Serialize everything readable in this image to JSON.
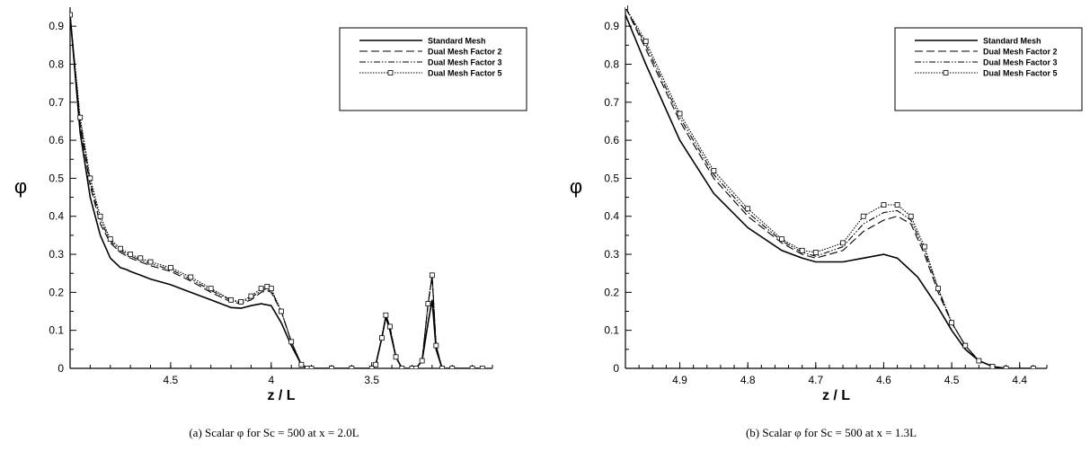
{
  "chart_data": [
    {
      "type": "line",
      "xlabel": "z / L",
      "ylabel": "φ",
      "caption": "(a) Scalar φ for Sc = 500 at x = 2.0L",
      "xlim": [
        5.0,
        2.9
      ],
      "ylim": [
        0,
        0.95
      ],
      "x_reversed": true,
      "xticks": [
        "4.5",
        "4",
        "3.5"
      ],
      "yticks": [
        "0",
        "0.1",
        "0.2",
        "0.3",
        "0.4",
        "0.5",
        "0.6",
        "0.7",
        "0.8",
        "0.9"
      ],
      "grid": false,
      "legend_position": "top-right",
      "series": [
        {
          "name": "Standard Mesh",
          "style": "solid",
          "marker": "none",
          "x": [
            5.0,
            4.95,
            4.9,
            4.85,
            4.8,
            4.75,
            4.72,
            4.7,
            4.65,
            4.6,
            4.5,
            4.4,
            4.3,
            4.2,
            4.15,
            4.1,
            4.05,
            4.0,
            3.95,
            3.9,
            3.85,
            3.82,
            3.8,
            3.7,
            3.6,
            3.5,
            3.48,
            3.45,
            3.43,
            3.41,
            3.38,
            3.35,
            3.3,
            3.28,
            3.25,
            3.22,
            3.2,
            3.18,
            3.15,
            3.1,
            3.0,
            2.95
          ],
          "y": [
            0.93,
            0.62,
            0.45,
            0.35,
            0.29,
            0.265,
            0.26,
            0.255,
            0.245,
            0.235,
            0.22,
            0.2,
            0.18,
            0.16,
            0.158,
            0.165,
            0.17,
            0.165,
            0.12,
            0.06,
            0.01,
            0.0,
            0.0,
            0.0,
            0.0,
            0.0,
            0.01,
            0.08,
            0.135,
            0.1,
            0.03,
            0.0,
            0.0,
            0.0,
            0.02,
            0.12,
            0.18,
            0.05,
            0.0,
            0.0,
            0.0,
            0.0
          ]
        },
        {
          "name": "Dual Mesh Factor 2",
          "style": "dash",
          "marker": "none",
          "x": [
            5.0,
            4.95,
            4.9,
            4.85,
            4.8,
            4.75,
            4.7,
            4.65,
            4.6,
            4.5,
            4.4,
            4.3,
            4.2,
            4.15,
            4.1,
            4.05,
            4.02,
            4.0,
            3.95,
            3.9,
            3.85,
            3.82,
            3.8,
            3.7,
            3.6,
            3.5,
            3.48,
            3.45,
            3.43,
            3.41,
            3.38,
            3.35,
            3.3,
            3.28,
            3.25,
            3.22,
            3.2,
            3.18,
            3.15,
            3.1,
            3.0,
            2.95
          ],
          "y": [
            0.93,
            0.64,
            0.48,
            0.38,
            0.33,
            0.305,
            0.29,
            0.28,
            0.27,
            0.255,
            0.23,
            0.2,
            0.175,
            0.17,
            0.18,
            0.2,
            0.205,
            0.2,
            0.15,
            0.07,
            0.01,
            0.0,
            0.0,
            0.0,
            0.0,
            0.0,
            0.01,
            0.08,
            0.14,
            0.11,
            0.03,
            0.0,
            0.0,
            0.0,
            0.02,
            0.17,
            0.24,
            0.06,
            0.0,
            0.0,
            0.0,
            0.0
          ]
        },
        {
          "name": "Dual Mesh Factor 3",
          "style": "dashdot",
          "marker": "none",
          "x": [
            5.0,
            4.95,
            4.9,
            4.85,
            4.8,
            4.75,
            4.7,
            4.65,
            4.6,
            4.5,
            4.4,
            4.3,
            4.2,
            4.15,
            4.1,
            4.05,
            4.02,
            4.0,
            3.95,
            3.9,
            3.85,
            3.82,
            3.8,
            3.7,
            3.6,
            3.5,
            3.48,
            3.45,
            3.43,
            3.41,
            3.38,
            3.35,
            3.3,
            3.28,
            3.25,
            3.22,
            3.2,
            3.18,
            3.15,
            3.1,
            3.0,
            2.95
          ],
          "y": [
            0.93,
            0.65,
            0.49,
            0.39,
            0.335,
            0.31,
            0.295,
            0.285,
            0.275,
            0.26,
            0.235,
            0.205,
            0.18,
            0.172,
            0.185,
            0.205,
            0.21,
            0.205,
            0.15,
            0.07,
            0.01,
            0.0,
            0.0,
            0.0,
            0.0,
            0.0,
            0.01,
            0.08,
            0.14,
            0.11,
            0.03,
            0.0,
            0.0,
            0.0,
            0.02,
            0.17,
            0.245,
            0.06,
            0.0,
            0.0,
            0.0,
            0.0
          ]
        },
        {
          "name": "Dual Mesh Factor 5",
          "style": "dotted",
          "marker": "square",
          "x": [
            5.0,
            4.95,
            4.9,
            4.85,
            4.8,
            4.75,
            4.7,
            4.65,
            4.6,
            4.5,
            4.4,
            4.3,
            4.2,
            4.15,
            4.1,
            4.05,
            4.02,
            4.0,
            3.95,
            3.9,
            3.85,
            3.82,
            3.8,
            3.7,
            3.6,
            3.5,
            3.48,
            3.45,
            3.43,
            3.41,
            3.38,
            3.35,
            3.3,
            3.28,
            3.25,
            3.22,
            3.2,
            3.18,
            3.15,
            3.1,
            3.0,
            2.95
          ],
          "y": [
            0.93,
            0.66,
            0.5,
            0.4,
            0.34,
            0.315,
            0.3,
            0.29,
            0.28,
            0.265,
            0.24,
            0.21,
            0.18,
            0.175,
            0.19,
            0.21,
            0.215,
            0.21,
            0.15,
            0.07,
            0.01,
            0.0,
            0.0,
            0.0,
            0.0,
            0.0,
            0.01,
            0.08,
            0.14,
            0.11,
            0.03,
            0.0,
            0.0,
            0.0,
            0.02,
            0.17,
            0.245,
            0.06,
            0.0,
            0.0,
            0.0,
            0.0
          ]
        }
      ]
    },
    {
      "type": "line",
      "xlabel": "z / L",
      "ylabel": "φ",
      "caption": "(b) Scalar φ for Sc = 500 at x = 1.3L",
      "xlim": [
        4.98,
        4.36
      ],
      "ylim": [
        0,
        0.95
      ],
      "x_reversed": true,
      "xticks": [
        "4.9",
        "4.8",
        "4.7",
        "4.6",
        "4.5",
        "4.4"
      ],
      "yticks": [
        "0",
        "0.1",
        "0.2",
        "0.3",
        "0.4",
        "0.5",
        "0.6",
        "0.7",
        "0.8",
        "0.9"
      ],
      "grid": false,
      "legend_position": "top-right",
      "series": [
        {
          "name": "Standard Mesh",
          "style": "solid",
          "marker": "none",
          "x": [
            4.98,
            4.95,
            4.9,
            4.85,
            4.8,
            4.75,
            4.72,
            4.7,
            4.66,
            4.63,
            4.6,
            4.58,
            4.55,
            4.52,
            4.5,
            4.48,
            4.46,
            4.44,
            4.42,
            4.38
          ],
          "y": [
            0.93,
            0.8,
            0.6,
            0.46,
            0.37,
            0.31,
            0.29,
            0.28,
            0.28,
            0.29,
            0.3,
            0.29,
            0.24,
            0.16,
            0.1,
            0.05,
            0.02,
            0.005,
            0.0,
            0.0
          ]
        },
        {
          "name": "Dual Mesh Factor 2",
          "style": "dash",
          "marker": "none",
          "x": [
            4.98,
            4.95,
            4.9,
            4.85,
            4.8,
            4.75,
            4.72,
            4.7,
            4.66,
            4.63,
            4.6,
            4.58,
            4.56,
            4.54,
            4.52,
            4.5,
            4.48,
            4.46,
            4.44,
            4.42,
            4.38
          ],
          "y": [
            0.95,
            0.84,
            0.65,
            0.5,
            0.4,
            0.33,
            0.3,
            0.29,
            0.31,
            0.36,
            0.39,
            0.4,
            0.38,
            0.3,
            0.2,
            0.12,
            0.06,
            0.02,
            0.005,
            0.0,
            0.0
          ]
        },
        {
          "name": "Dual Mesh Factor 3",
          "style": "dashdot",
          "marker": "none",
          "x": [
            4.98,
            4.95,
            4.9,
            4.85,
            4.8,
            4.75,
            4.72,
            4.7,
            4.66,
            4.63,
            4.6,
            4.58,
            4.56,
            4.54,
            4.52,
            4.5,
            4.48,
            4.46,
            4.44,
            4.42,
            4.38
          ],
          "y": [
            0.95,
            0.85,
            0.66,
            0.51,
            0.41,
            0.335,
            0.305,
            0.295,
            0.32,
            0.38,
            0.41,
            0.415,
            0.39,
            0.31,
            0.21,
            0.12,
            0.06,
            0.02,
            0.005,
            0.0,
            0.0
          ]
        },
        {
          "name": "Dual Mesh Factor 5",
          "style": "dotted",
          "marker": "square",
          "x": [
            4.98,
            4.95,
            4.9,
            4.85,
            4.8,
            4.75,
            4.72,
            4.7,
            4.66,
            4.63,
            4.6,
            4.58,
            4.56,
            4.54,
            4.52,
            4.5,
            4.48,
            4.46,
            4.44,
            4.42,
            4.38
          ],
          "y": [
            0.95,
            0.86,
            0.67,
            0.52,
            0.42,
            0.34,
            0.31,
            0.305,
            0.33,
            0.4,
            0.43,
            0.43,
            0.4,
            0.32,
            0.21,
            0.12,
            0.06,
            0.02,
            0.005,
            0.0,
            0.0
          ]
        }
      ]
    }
  ]
}
